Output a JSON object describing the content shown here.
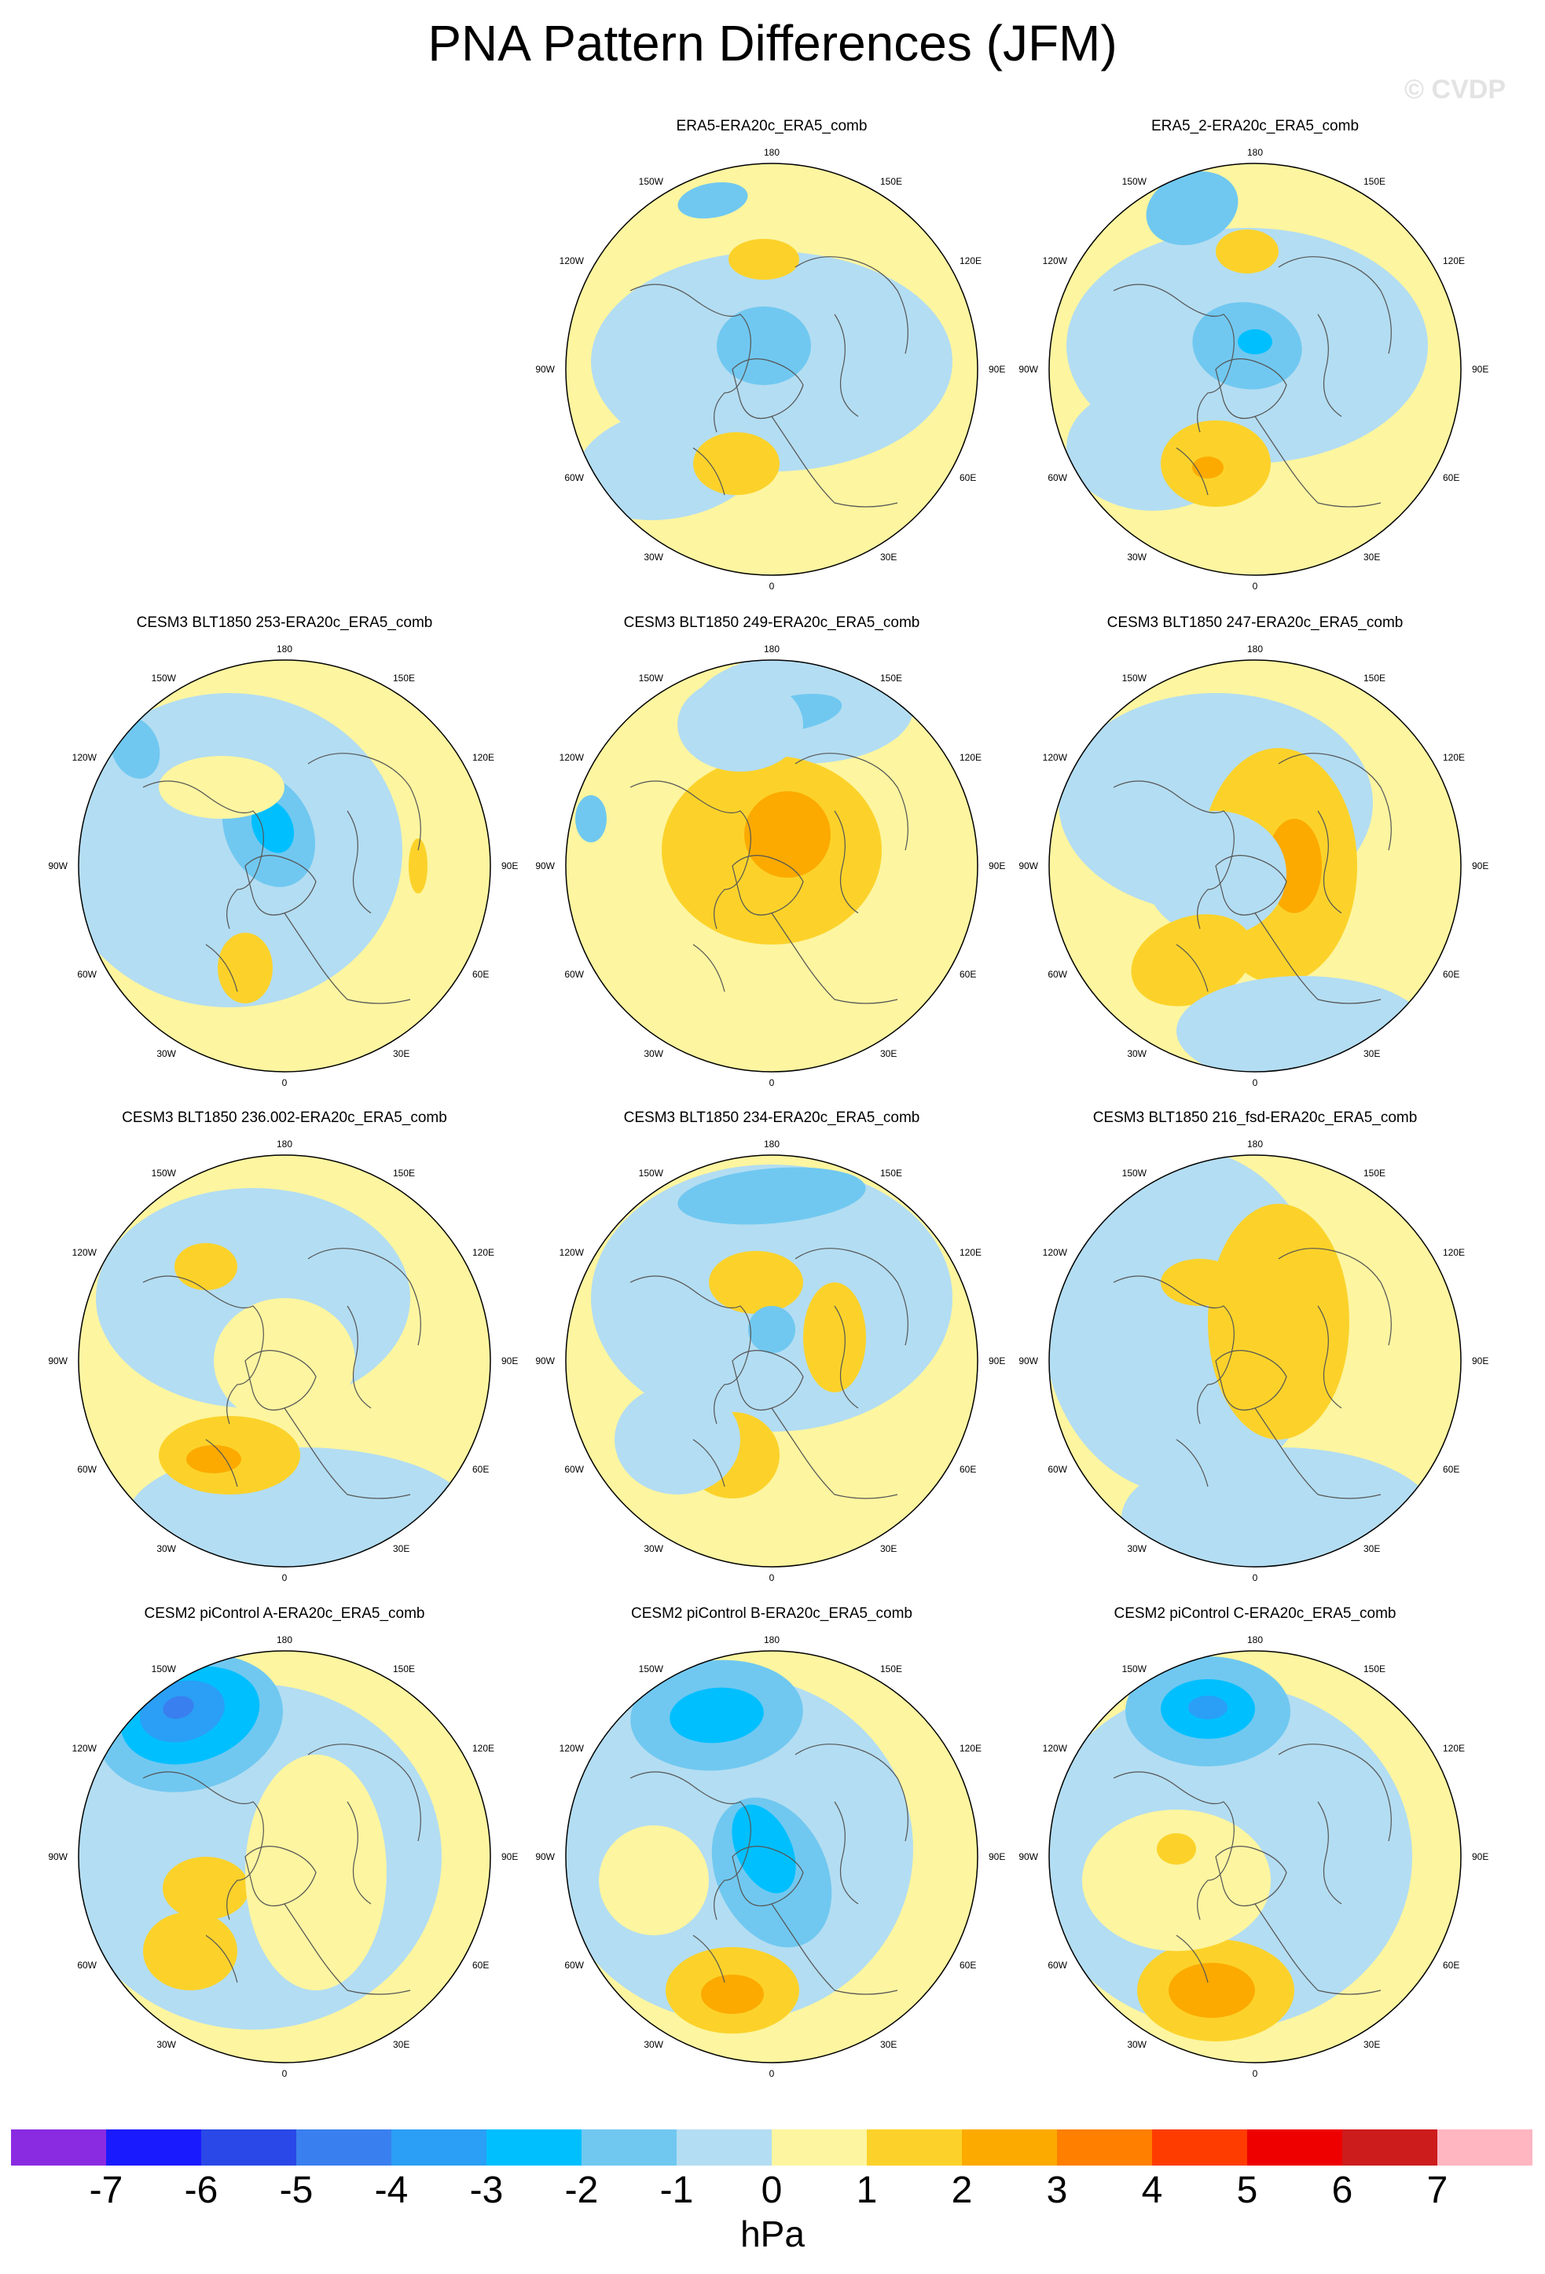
{
  "title": "PNA Pattern Differences (JFM)",
  "watermark": "© CVDP",
  "units": "hPa",
  "longitude_labels": [
    "180",
    "150E",
    "120E",
    "90E",
    "60E",
    "30E",
    "0",
    "30W",
    "60W",
    "90W",
    "120W",
    "150W"
  ],
  "colorbar": {
    "labels": [
      "-7",
      "-6",
      "-5",
      "-4",
      "-3",
      "-2",
      "-1",
      "0",
      "1",
      "2",
      "3",
      "4",
      "5",
      "6",
      "7"
    ],
    "colors": [
      "#8a2be2",
      "#1a1aff",
      "#2a48e8",
      "#3a7fef",
      "#2a9ff5",
      "#00bfff",
      "#70c8f0",
      "#b3ddf2",
      "#fdf5a0",
      "#fcd22a",
      "#fcaa00",
      "#ff7f00",
      "#ff3c00",
      "#ee0000",
      "#cc1c1c",
      "#ffb6c1"
    ]
  },
  "panels": [
    {
      "name": "ERA5-ERA20c_ERA5_comb"
    },
    {
      "name": "ERA5_2-ERA20c_ERA5_comb"
    },
    {
      "name": "CESM3 BLT1850 253-ERA20c_ERA5_comb"
    },
    {
      "name": "CESM3 BLT1850 249-ERA20c_ERA5_comb"
    },
    {
      "name": "CESM3 BLT1850 247-ERA20c_ERA5_comb"
    },
    {
      "name": "CESM3 BLT1850 236.002-ERA20c_ERA5_comb"
    },
    {
      "name": "CESM3 BLT1850 234-ERA20c_ERA5_comb"
    },
    {
      "name": "CESM3 BLT1850 216_fsd-ERA20c_ERA5_comb"
    },
    {
      "name": "CESM2 piControl A-ERA20c_ERA5_comb"
    },
    {
      "name": "CESM2 piControl B-ERA20c_ERA5_comb"
    },
    {
      "name": "CESM2 piControl C-ERA20c_ERA5_comb"
    }
  ]
}
